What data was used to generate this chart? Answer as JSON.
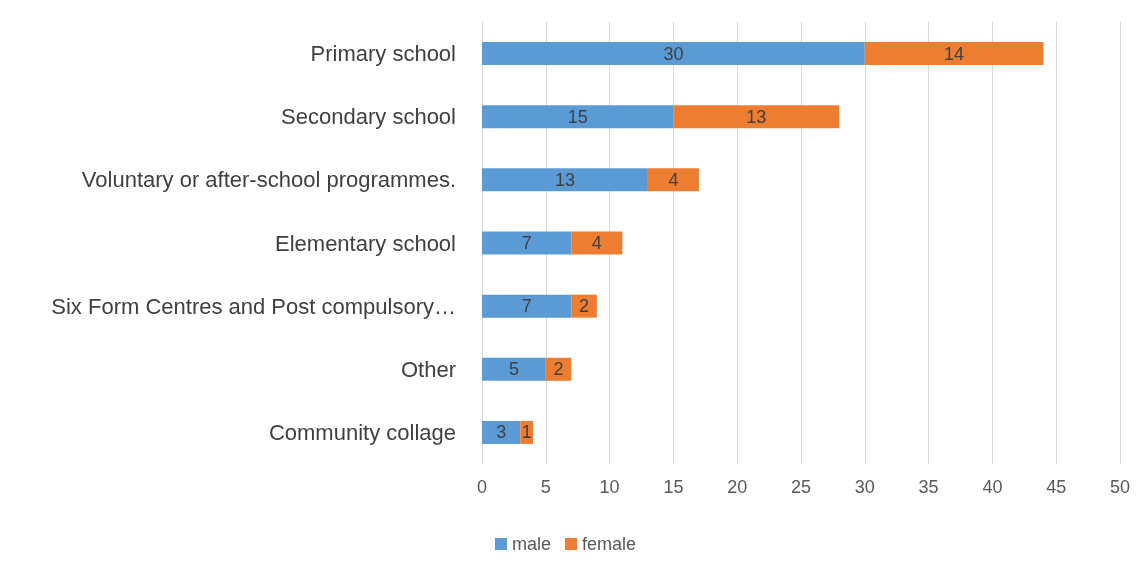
{
  "chart_data": {
    "type": "bar",
    "orientation": "horizontal",
    "stacked": true,
    "categories": [
      "Primary school",
      "Secondary school",
      "Voluntary or after-school programmes.",
      "Elementary school",
      "Six Form Centres and Post compulsory…",
      "Other",
      "Community collage"
    ],
    "series": [
      {
        "name": "male",
        "color": "#5b9bd5",
        "values": [
          30,
          15,
          13,
          7,
          7,
          5,
          3
        ]
      },
      {
        "name": "female",
        "color": "#ed7d31",
        "values": [
          14,
          13,
          4,
          4,
          2,
          2,
          1
        ]
      }
    ],
    "xlim": [
      0,
      50
    ],
    "xticks": [
      0,
      5,
      10,
      15,
      20,
      25,
      30,
      35,
      40,
      45,
      50
    ],
    "grid": "x",
    "legend": "bottom",
    "data_labels": true
  }
}
